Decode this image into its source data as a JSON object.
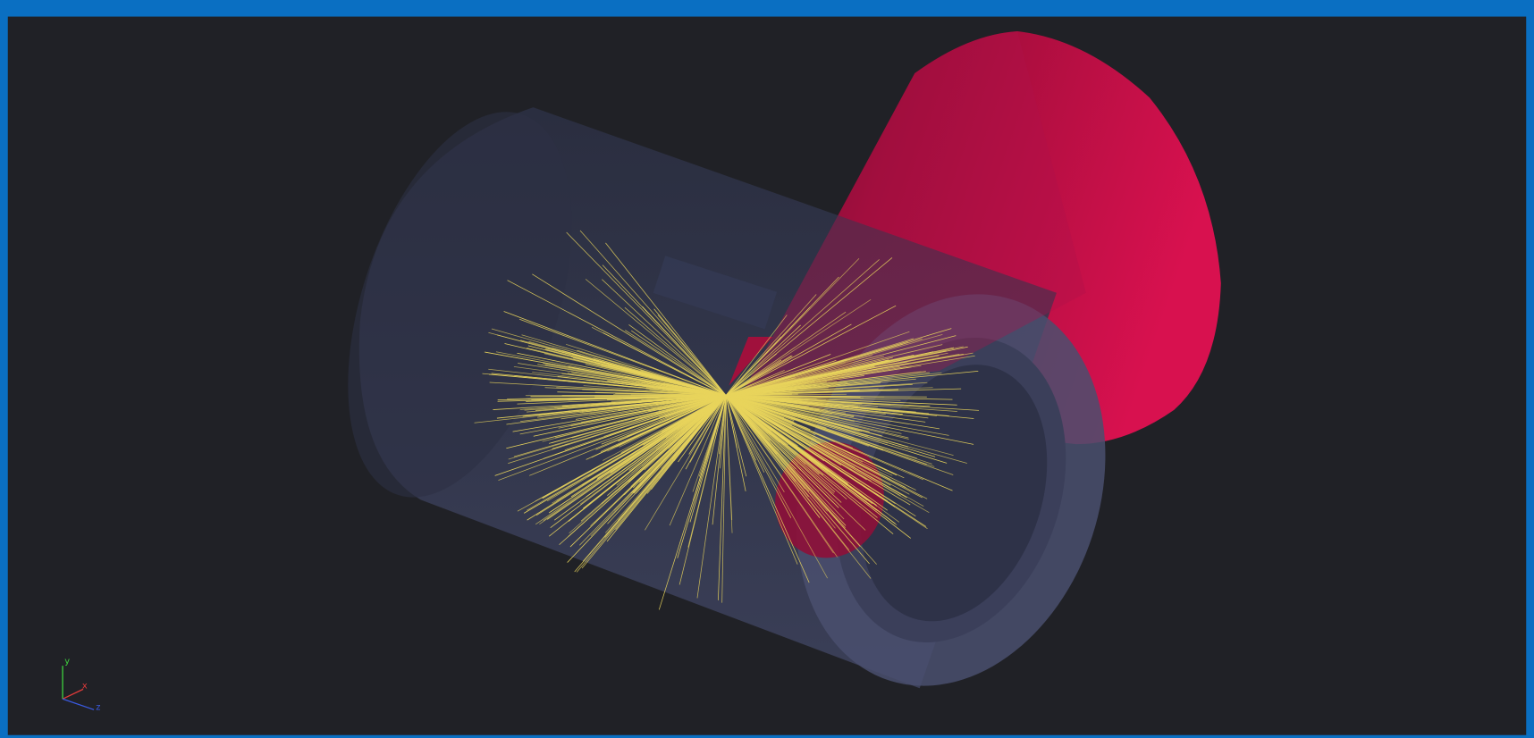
{
  "axes_gizmo": {
    "y": "y",
    "x": "x",
    "z": "z"
  }
}
